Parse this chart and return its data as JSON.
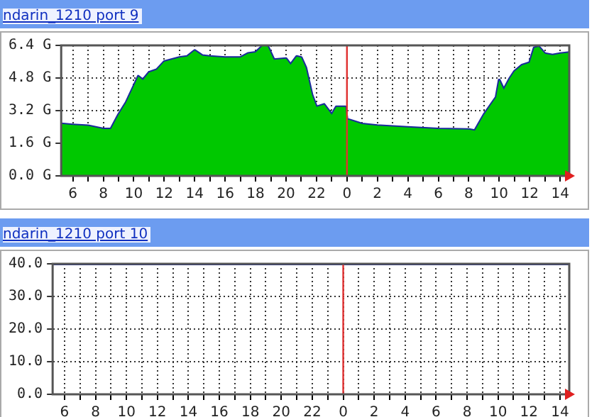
{
  "chart_data": [
    {
      "type": "area",
      "title": "ndarin_1210 port 9",
      "series": [
        {
          "color": "#00c800",
          "x": [
            "--01-01T05:14",
            "--01-01T06:00",
            "--01-01T07:00",
            "--01-01T08:00",
            "--01-01T08:30",
            "--01-01T09:00",
            "--01-01T09:30",
            "--01-01T10:00",
            "--01-01T10:18",
            "--01-01T10:36",
            "--01-01T11:00",
            "--01-01T11:30",
            "--01-01T12:00",
            "--01-01T13:00",
            "--01-01T13:30",
            "--01-01T14:00",
            "--01-01T14:30",
            "--01-01T15:00",
            "--01-01T16:00",
            "--01-01T17:00",
            "--01-01T17:30",
            "--01-01T18:00",
            "--01-01T18:30",
            "--01-01T18:48",
            "--01-01T19:12",
            "--01-01T20:00",
            "--01-01T20:18",
            "--01-01T20:42",
            "--01-01T21:00",
            "--01-01T21:18",
            "--01-01T21:42",
            "--01-01T22:00",
            "--01-01T22:30",
            "--01-01T23:00",
            "--01-01T23:18",
            "--01-01T23:54",
            "--01-02T00:00",
            "--01-02T01:00",
            "--01-02T02:00",
            "--01-02T04:00",
            "--01-02T06:00",
            "--01-02T08:00",
            "--01-02T08:24",
            "--01-02T09:00",
            "--01-02T09:48",
            "--01-02T10:00",
            "--01-02T10:18",
            "--01-02T10:42",
            "--01-02T11:00",
            "--01-02T11:30",
            "--01-02T12:00",
            "--01-02T12:18",
            "--01-02T12:36",
            "--01-02T13:00",
            "--01-02T13:30",
            "--01-02T14:00",
            "--01-02T14:36"
          ],
          "values": [
            2.55,
            2.5,
            2.45,
            2.3,
            2.3,
            3.0,
            3.6,
            4.4,
            4.88,
            4.7,
            5.07,
            5.2,
            5.6,
            5.8,
            5.85,
            6.15,
            5.9,
            5.85,
            5.8,
            5.8,
            6.0,
            6.05,
            6.4,
            6.35,
            5.7,
            5.75,
            5.45,
            5.85,
            5.8,
            5.3,
            3.98,
            3.38,
            3.5,
            3.0,
            3.38,
            3.38,
            2.78,
            2.54,
            2.46,
            2.37,
            2.3,
            2.27,
            2.22,
            3.0,
            3.86,
            4.7,
            4.23,
            4.78,
            5.12,
            5.43,
            5.55,
            6.28,
            6.33,
            5.99,
            5.92,
            5.99,
            6.04
          ]
        },
        {
          "type": "line",
          "color": "#1a2a9c",
          "x": [
            "--01-01T05:14",
            "--01-01T06:00",
            "--01-01T07:00",
            "--01-01T08:00",
            "--01-01T08:30",
            "--01-01T09:00",
            "--01-01T09:30",
            "--01-01T10:00",
            "--01-01T10:18",
            "--01-01T10:36",
            "--01-01T11:00",
            "--01-01T11:30",
            "--01-01T12:00",
            "--01-01T13:00",
            "--01-01T13:30",
            "--01-01T14:00",
            "--01-01T14:30",
            "--01-01T15:00",
            "--01-01T16:00",
            "--01-01T17:00",
            "--01-01T17:30",
            "--01-01T18:00",
            "--01-01T18:30",
            "--01-01T18:48",
            "--01-01T19:12",
            "--01-01T20:00",
            "--01-01T20:18",
            "--01-01T20:42",
            "--01-01T21:00",
            "--01-01T21:18",
            "--01-01T21:42",
            "--01-01T22:00",
            "--01-01T22:30",
            "--01-01T23:00",
            "--01-01T23:18",
            "--01-01T23:54",
            "--01-02T00:00",
            "--01-02T01:00",
            "--01-02T02:00",
            "--01-02T04:00",
            "--01-02T06:00",
            "--01-02T08:00",
            "--01-02T08:24",
            "--01-02T09:00",
            "--01-02T09:48",
            "--01-02T10:00",
            "--01-02T10:18",
            "--01-02T10:42",
            "--01-02T11:00",
            "--01-02T11:30",
            "--01-02T12:00",
            "--01-02T12:18",
            "--01-02T12:36",
            "--01-02T13:00",
            "--01-02T13:30",
            "--01-02T14:00",
            "--01-02T14:36"
          ],
          "values": [
            2.55,
            2.5,
            2.45,
            2.3,
            2.3,
            3.0,
            3.6,
            4.4,
            4.88,
            4.7,
            5.07,
            5.2,
            5.6,
            5.8,
            5.85,
            6.15,
            5.9,
            5.85,
            5.8,
            5.8,
            6.0,
            6.05,
            6.4,
            6.35,
            5.7,
            5.75,
            5.45,
            5.85,
            5.8,
            5.3,
            3.98,
            3.38,
            3.5,
            3.0,
            3.38,
            3.38,
            2.78,
            2.54,
            2.46,
            2.37,
            2.3,
            2.27,
            2.22,
            3.0,
            3.86,
            4.7,
            4.23,
            4.78,
            5.12,
            5.43,
            5.55,
            6.28,
            6.33,
            5.99,
            5.92,
            5.99,
            6.04
          ]
        }
      ],
      "xlim": [
        "--01-01T05:14",
        "--01-02T14:36"
      ],
      "xticks": [
        {
          "value": "--01-01T06:00",
          "label": "6"
        },
        {
          "value": "--01-01T07:00",
          "label": null
        },
        {
          "value": "--01-01T08:00",
          "label": "8"
        },
        {
          "value": "--01-01T09:00",
          "label": null
        },
        {
          "value": "--01-01T10:00",
          "label": "10"
        },
        {
          "value": "--01-01T11:00",
          "label": null
        },
        {
          "value": "--01-01T12:00",
          "label": "12"
        },
        {
          "value": "--01-01T13:00",
          "label": null
        },
        {
          "value": "--01-01T14:00",
          "label": "14"
        },
        {
          "value": "--01-01T15:00",
          "label": null
        },
        {
          "value": "--01-01T16:00",
          "label": "16"
        },
        {
          "value": "--01-01T17:00",
          "label": null
        },
        {
          "value": "--01-01T18:00",
          "label": "18"
        },
        {
          "value": "--01-01T19:00",
          "label": null
        },
        {
          "value": "--01-01T20:00",
          "label": "20"
        },
        {
          "value": "--01-01T21:00",
          "label": null
        },
        {
          "value": "--01-01T22:00",
          "label": "22"
        },
        {
          "value": "--01-01T23:00",
          "label": null
        },
        {
          "value": "--01-02T00:00",
          "label": "0"
        },
        {
          "value": "--01-02T01:00",
          "label": null
        },
        {
          "value": "--01-02T02:00",
          "label": "2"
        },
        {
          "value": "--01-02T03:00",
          "label": null
        },
        {
          "value": "--01-02T04:00",
          "label": "4"
        },
        {
          "value": "--01-02T05:00",
          "label": null
        },
        {
          "value": "--01-02T06:00",
          "label": "6"
        },
        {
          "value": "--01-02T07:00",
          "label": null
        },
        {
          "value": "--01-02T08:00",
          "label": "8"
        },
        {
          "value": "--01-02T09:00",
          "label": null
        },
        {
          "value": "--01-02T10:00",
          "label": "10"
        },
        {
          "value": "--01-02T11:00",
          "label": null
        },
        {
          "value": "--01-02T12:00",
          "label": "12"
        },
        {
          "value": "--01-02T13:00",
          "label": null
        },
        {
          "value": "--01-02T14:00",
          "label": "14"
        }
      ],
      "ylim": [
        0,
        6.4
      ],
      "yticks": [
        {
          "value": 0,
          "label": "0.0 G"
        },
        {
          "value": 1.6,
          "label": "1.6 G"
        },
        {
          "value": 3.2,
          "label": "3.2 G"
        },
        {
          "value": 4.8,
          "label": "4.8 G"
        },
        {
          "value": 6.4,
          "label": "6.4 G"
        }
      ],
      "grid": true,
      "legend": false,
      "ref_lines": [
        {
          "axis": "x",
          "value": "--01-02T00:00",
          "color": "#e03030"
        }
      ]
    },
    {
      "type": "line",
      "title": "ndarin_1210 port 10",
      "series": [
        {
          "color": "#1a2a9c",
          "x": [
            "--01-01T05:14",
            "--01-01T10:00",
            "--01-01T15:00",
            "--01-01T20:00",
            "--01-02T00:00",
            "--01-02T06:00",
            "--01-02T11:00",
            "--01-02T14:36"
          ],
          "values": [
            40,
            40,
            40,
            40,
            40,
            40,
            40,
            40
          ]
        }
      ],
      "xlim": [
        "--01-01T05:14",
        "--01-02T14:36"
      ],
      "xticks": [
        {
          "value": "--01-01T06:00",
          "label": "6"
        },
        {
          "value": "--01-01T07:00",
          "label": null
        },
        {
          "value": "--01-01T08:00",
          "label": "8"
        },
        {
          "value": "--01-01T09:00",
          "label": null
        },
        {
          "value": "--01-01T10:00",
          "label": "10"
        },
        {
          "value": "--01-01T11:00",
          "label": null
        },
        {
          "value": "--01-01T12:00",
          "label": "12"
        },
        {
          "value": "--01-01T13:00",
          "label": null
        },
        {
          "value": "--01-01T14:00",
          "label": "14"
        },
        {
          "value": "--01-01T15:00",
          "label": null
        },
        {
          "value": "--01-01T16:00",
          "label": "16"
        },
        {
          "value": "--01-01T17:00",
          "label": null
        },
        {
          "value": "--01-01T18:00",
          "label": "18"
        },
        {
          "value": "--01-01T19:00",
          "label": null
        },
        {
          "value": "--01-01T20:00",
          "label": "20"
        },
        {
          "value": "--01-01T21:00",
          "label": null
        },
        {
          "value": "--01-01T22:00",
          "label": "22"
        },
        {
          "value": "--01-01T23:00",
          "label": null
        },
        {
          "value": "--01-02T00:00",
          "label": "0"
        },
        {
          "value": "--01-02T01:00",
          "label": null
        },
        {
          "value": "--01-02T02:00",
          "label": "2"
        },
        {
          "value": "--01-02T03:00",
          "label": null
        },
        {
          "value": "--01-02T04:00",
          "label": "4"
        },
        {
          "value": "--01-02T05:00",
          "label": null
        },
        {
          "value": "--01-02T06:00",
          "label": "6"
        },
        {
          "value": "--01-02T07:00",
          "label": null
        },
        {
          "value": "--01-02T08:00",
          "label": "8"
        },
        {
          "value": "--01-02T09:00",
          "label": null
        },
        {
          "value": "--01-02T10:00",
          "label": "10"
        },
        {
          "value": "--01-02T11:00",
          "label": null
        },
        {
          "value": "--01-02T12:00",
          "label": "12"
        },
        {
          "value": "--01-02T13:00",
          "label": null
        },
        {
          "value": "--01-02T14:00",
          "label": "14"
        }
      ],
      "ylim": [
        0,
        40
      ],
      "yticks": [
        {
          "value": 0,
          "label": "0.0"
        },
        {
          "value": 10,
          "label": "10.0"
        },
        {
          "value": 20,
          "label": "20.0"
        },
        {
          "value": 30,
          "label": "30.0"
        },
        {
          "value": 40,
          "label": "40.0"
        }
      ],
      "grid": true,
      "legend": false,
      "ref_lines": [
        {
          "axis": "x",
          "value": "--01-02T00:00",
          "color": "#e03030"
        }
      ]
    }
  ]
}
